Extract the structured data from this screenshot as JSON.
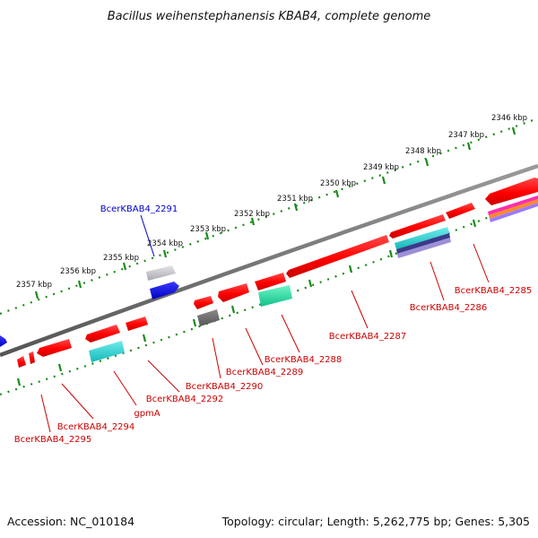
{
  "title": "Bacillus weihenstephanensis KBAB4, complete genome",
  "footer": {
    "accession": "Accession: NC_010184",
    "summary": "Topology: circular; Length: 5,262,775 bp; Genes: 5,305"
  },
  "colors": {
    "forward_gene": "#ff0000",
    "reverse_gene": "#ff0000",
    "blue_gene": "#1010e0",
    "gray_gene": "#c8c8cc",
    "dark_gray_gene": "#6f6f6f",
    "teal_gene": "#1fcfcf",
    "green_gene": "#1fdca0",
    "backbone": "#777777",
    "ruler": "#1a8a1a",
    "label_blue": "#0000cc",
    "label_red": "#cc0000"
  },
  "map": {
    "ticks": [
      "2346 kbp",
      "2347 kbp",
      "2348 kbp",
      "2349 kbp",
      "2350 kbp",
      "2351 kbp",
      "2352 kbp",
      "2353 kbp",
      "2354 kbp",
      "2355 kbp",
      "2356 kbp",
      "2357 kbp"
    ],
    "labels": {
      "BcerKBAB4_2291": "BcerKBAB4_2291",
      "BcerKBAB4_2285": "BcerKBAB4_2285",
      "BcerKBAB4_2286": "BcerKBAB4_2286",
      "BcerKBAB4_2287": "BcerKBAB4_2287",
      "BcerKBAB4_2288": "BcerKBAB4_2288",
      "BcerKBAB4_2289": "BcerKBAB4_2289",
      "BcerKBAB4_2290": "BcerKBAB4_2290",
      "BcerKBAB4_2292": "BcerKBAB4_2292",
      "gpmA": "gpmA",
      "BcerKBAB4_2294": "BcerKBAB4_2294",
      "BcerKBAB4_2295": "BcerKBAB4_2295"
    }
  }
}
